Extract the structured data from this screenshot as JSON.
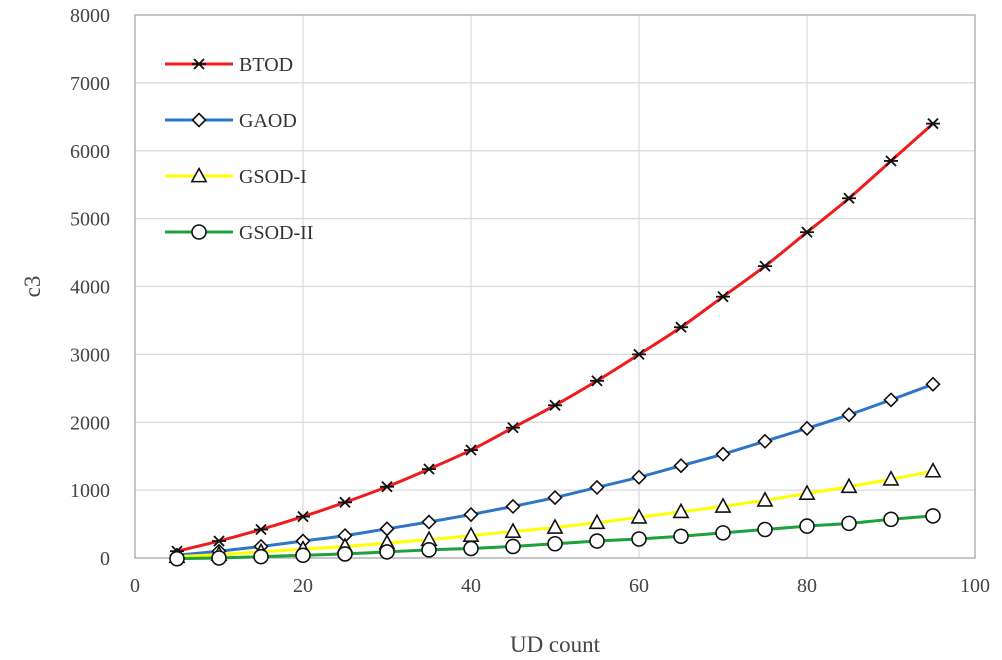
{
  "chart_data": {
    "type": "line",
    "title": "",
    "xlabel": "UD count",
    "ylabel": "c3",
    "xlim": [
      0,
      100
    ],
    "ylim": [
      0,
      8000
    ],
    "x_ticks": [
      0,
      20,
      40,
      60,
      80,
      100
    ],
    "y_ticks": [
      0,
      1000,
      2000,
      3000,
      4000,
      5000,
      6000,
      7000,
      8000
    ],
    "grid": true,
    "legend_position": "top-left",
    "x": [
      5,
      10,
      15,
      20,
      25,
      30,
      35,
      40,
      45,
      50,
      55,
      60,
      65,
      70,
      75,
      80,
      85,
      90,
      95
    ],
    "series": [
      {
        "name": "BTOD",
        "color": "#ee1c1c",
        "marker": "asterisk",
        "values": [
          100,
          250,
          420,
          610,
          820,
          1050,
          1310,
          1590,
          1920,
          2250,
          2610,
          3000,
          3400,
          3850,
          4300,
          4800,
          5300,
          5850,
          6400
        ]
      },
      {
        "name": "GAOD",
        "color": "#2e75c8",
        "marker": "diamond",
        "values": [
          40,
          100,
          170,
          250,
          330,
          430,
          530,
          640,
          760,
          890,
          1040,
          1190,
          1360,
          1530,
          1720,
          1910,
          2110,
          2330,
          2560
        ]
      },
      {
        "name": "GSOD-I",
        "color": "#ffff00",
        "marker": "triangle",
        "values": [
          20,
          50,
          90,
          130,
          170,
          220,
          270,
          330,
          390,
          450,
          520,
          600,
          680,
          760,
          850,
          950,
          1050,
          1160,
          1280
        ]
      },
      {
        "name": "GSOD-II",
        "color": "#1ea03c",
        "marker": "circle",
        "values": [
          -10,
          0,
          20,
          40,
          60,
          90,
          120,
          140,
          170,
          210,
          250,
          280,
          320,
          370,
          420,
          470,
          510,
          570,
          620
        ]
      }
    ]
  }
}
